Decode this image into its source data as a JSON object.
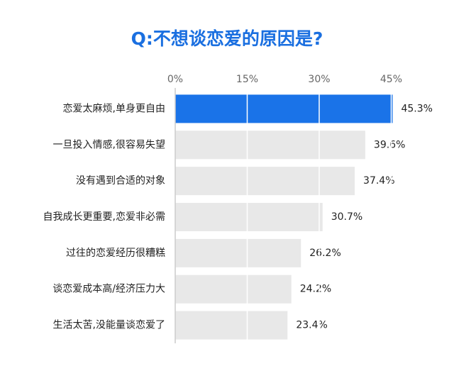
{
  "chart_data": {
    "type": "hbar",
    "title": "Q:不想谈恋爱的原因是?",
    "categories": [
      "恋爱太麻烦,单身更自由",
      "一旦投入情感,很容易失望",
      "没有遇到合适的对象",
      "自我成长更重要,恋爱非必需",
      "过往的恋爱经历很糟糕",
      "谈恋爱成本高/经济压力大",
      "生活太苦,没能量谈恋爱了"
    ],
    "values": [
      45.3,
      39.6,
      37.4,
      30.7,
      26.2,
      24.2,
      23.4
    ],
    "value_labels": [
      "45.3%",
      "39.6%",
      "37.4%",
      "30.7%",
      "26.2%",
      "24.2%",
      "23.4%"
    ],
    "colors": [
      "#1a73e8",
      "#e8e8e8",
      "#e8e8e8",
      "#e8e8e8",
      "#e8e8e8",
      "#e8e8e8",
      "#e8e8e8"
    ],
    "xlim": [
      0,
      47
    ],
    "xticks": [
      {
        "value": 0,
        "label": "0%"
      },
      {
        "value": 15,
        "label": "15%"
      },
      {
        "value": 30,
        "label": "30%"
      },
      {
        "value": 45,
        "label": "45%"
      }
    ],
    "grid": true
  }
}
